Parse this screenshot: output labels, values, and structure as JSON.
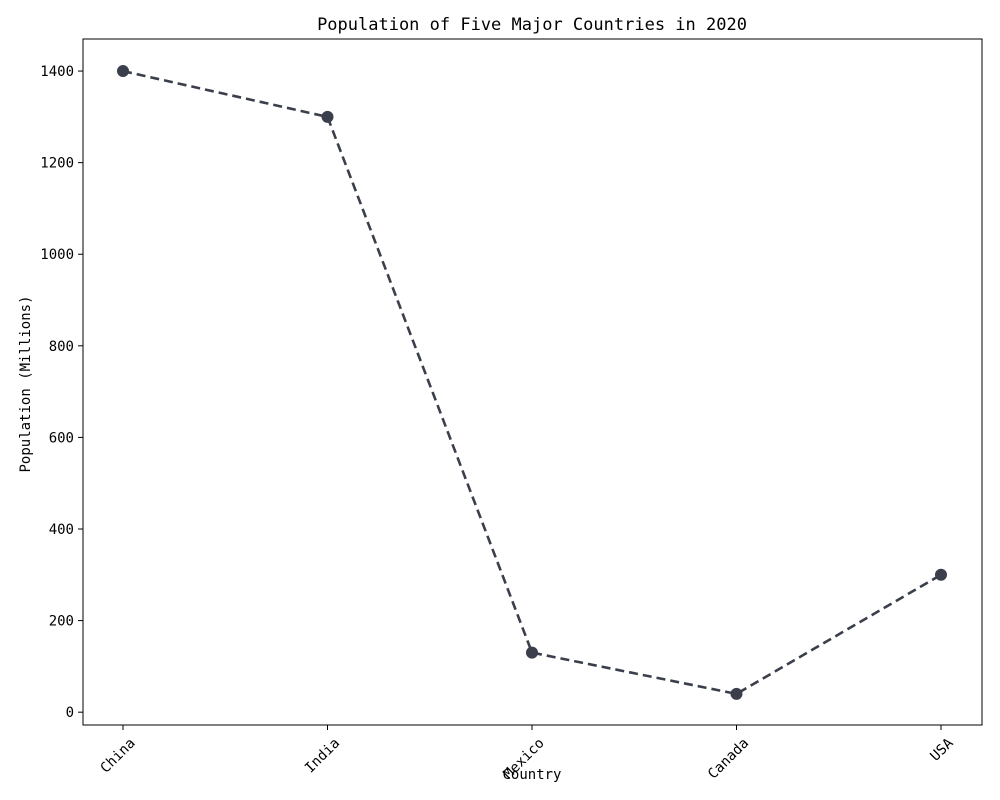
{
  "chart_data": {
    "type": "line",
    "title": "Population of Five Major Countries in 2020",
    "xlabel": "Country",
    "ylabel": "Population (Millions)",
    "categories": [
      "China",
      "India",
      "Mexico",
      "Canada",
      "USA"
    ],
    "series": [
      {
        "values": [
          1400,
          1300,
          130,
          40,
          300
        ],
        "color": "#3a3f4b",
        "line_style": "dashed",
        "marker": "circle"
      }
    ],
    "ylim": [
      -28,
      1470
    ],
    "yticks": [
      0,
      200,
      400,
      600,
      800,
      1000,
      1200,
      1400
    ],
    "grid": false,
    "legend": "none",
    "xtick_rotation": "45"
  }
}
